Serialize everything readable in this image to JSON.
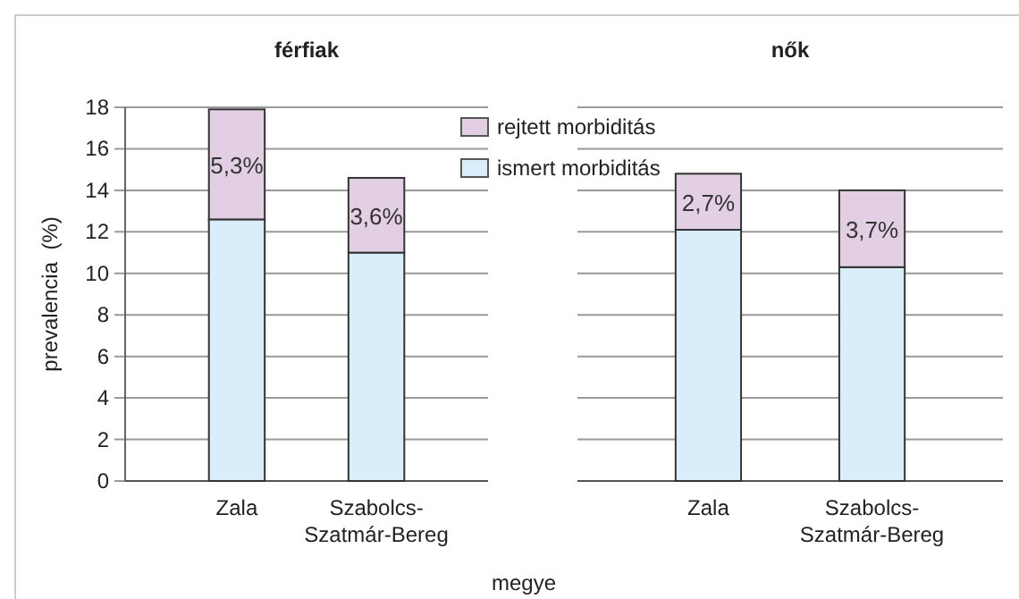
{
  "chart_data": [
    {
      "type": "bar",
      "title": "férfiak",
      "ylabel": "prevalencia  (%)",
      "xlabel": "megye",
      "categories": [
        "Zala",
        "Szabolcs-Szatmár-Bereg"
      ],
      "stacked": true,
      "series": [
        {
          "name": "ismert morbiditás",
          "color": "#d9eefa",
          "values": [
            12.6,
            11.0
          ]
        },
        {
          "name": "rejtett morbiditás",
          "color": "#e3cfe3",
          "values": [
            5.3,
            3.6
          ],
          "value_labels": [
            "5,3%",
            "3,6%"
          ]
        }
      ],
      "ylim": [
        0,
        18
      ],
      "yticks": [
        0,
        2,
        4,
        6,
        8,
        10,
        12,
        14,
        16,
        18
      ],
      "grid": "y",
      "legend": "top right"
    },
    {
      "type": "bar",
      "title": "nők",
      "categories": [
        "Zala",
        "Szabolcs-Szatmár-Bereg"
      ],
      "stacked": true,
      "series": [
        {
          "color": "#d9eefa",
          "values": [
            12.1,
            10.3
          ]
        },
        {
          "color": "#e3cfe3",
          "values": [
            2.7,
            3.7
          ],
          "value_labels": [
            "2,7%",
            "3,7%"
          ]
        }
      ],
      "ylim": [
        0,
        18
      ],
      "yticks": [
        0,
        2,
        4,
        6,
        8,
        10,
        12,
        14,
        16,
        18
      ],
      "grid": "y",
      "tick_labels": "x"
    }
  ]
}
